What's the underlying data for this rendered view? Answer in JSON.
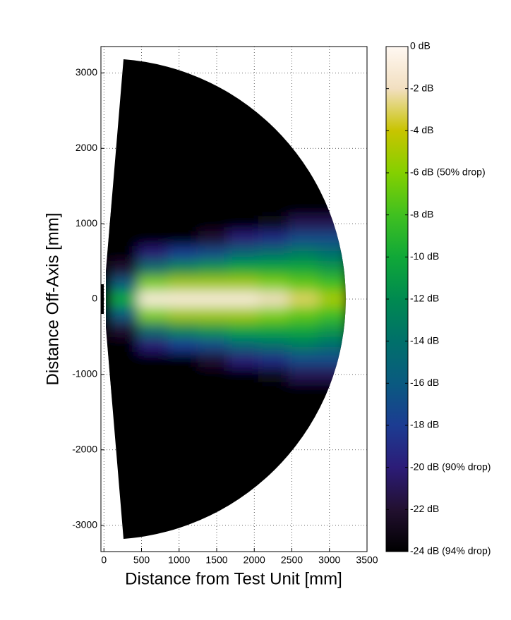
{
  "chart_data": {
    "type": "heatmap",
    "xlabel": "Distance from Test Unit [mm]",
    "ylabel": "Distance Off-Axis [mm]",
    "xlim": [
      -40,
      3500
    ],
    "xticks": [
      0,
      500,
      1000,
      1500,
      2000,
      2500,
      3000,
      3500
    ],
    "ylim": [
      -3350,
      3350
    ],
    "yticks": [
      -3000,
      -2000,
      -1000,
      0,
      1000,
      2000,
      3000
    ],
    "grid": true,
    "x": [
      250,
      650,
      1050,
      1450,
      1850,
      2250,
      2650,
      3050
    ],
    "y": [
      1200,
      1000,
      800,
      600,
      400,
      200,
      0,
      -200,
      -400,
      -600,
      -800,
      -1000,
      -1200
    ],
    "values": [
      [
        -24,
        -24,
        -24,
        -24,
        -24,
        -24,
        -24,
        -24
      ],
      [
        -24,
        -24,
        -24,
        -24,
        -24,
        -23,
        -21,
        -21
      ],
      [
        -24,
        -24,
        -24,
        -22,
        -20,
        -19,
        -17,
        -17
      ],
      [
        -24,
        -20,
        -18,
        -17,
        -15,
        -14,
        -13,
        -14
      ],
      [
        -22,
        -14,
        -12,
        -11,
        -10,
        -10,
        -10,
        -11
      ],
      [
        -16,
        -6,
        -5,
        -5,
        -5,
        -6,
        -7,
        -8
      ],
      [
        -10,
        -1,
        -1,
        -1,
        -1,
        -2,
        -3,
        -5
      ],
      [
        -16,
        -6,
        -5,
        -5,
        -5,
        -6,
        -7,
        -8
      ],
      [
        -22,
        -14,
        -12,
        -11,
        -10,
        -10,
        -10,
        -11
      ],
      [
        -24,
        -20,
        -18,
        -17,
        -15,
        -14,
        -13,
        -14
      ],
      [
        -24,
        -24,
        -24,
        -22,
        -20,
        -19,
        -17,
        -17
      ],
      [
        -24,
        -24,
        -24,
        -24,
        -24,
        -23,
        -21,
        -21
      ],
      [
        -24,
        -24,
        -24,
        -24,
        -24,
        -24,
        -24,
        -24
      ]
    ],
    "clim": [
      -24,
      0
    ],
    "cticks": [
      {
        "value": 0,
        "label": "0 dB"
      },
      {
        "value": -2,
        "label": "-2 dB"
      },
      {
        "value": -4,
        "label": "-4 dB"
      },
      {
        "value": -6,
        "label": "-6 dB (50% drop)"
      },
      {
        "value": -8,
        "label": "-8 dB"
      },
      {
        "value": -10,
        "label": "-10 dB"
      },
      {
        "value": -12,
        "label": "-12 dB"
      },
      {
        "value": -14,
        "label": "-14 dB"
      },
      {
        "value": -16,
        "label": "-16 dB"
      },
      {
        "value": -18,
        "label": "-18 dB"
      },
      {
        "value": -20,
        "label": "-20 dB (90% drop)"
      },
      {
        "value": -22,
        "label": "-22 dB"
      },
      {
        "value": -24,
        "label": "-24 dB (94% drop)"
      }
    ],
    "colormap": [
      "#fff8f2",
      "#f2dfc0",
      "#c8c400",
      "#84d000",
      "#40c020",
      "#10a838",
      "#008a50",
      "#00706a",
      "#0a5a80",
      "#1c3c92",
      "#2c1c78",
      "#221030",
      "#000000"
    ]
  }
}
